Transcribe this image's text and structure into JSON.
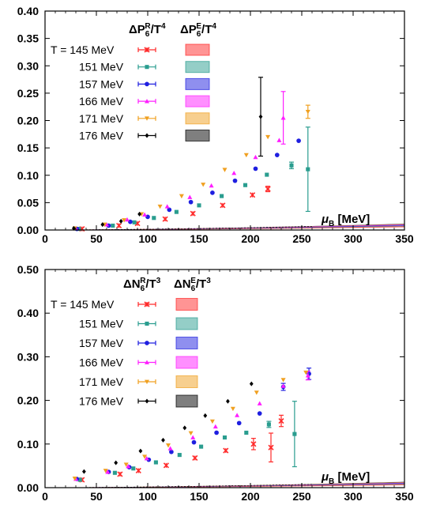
{
  "colors": {
    "T145": "#ff2a2a",
    "T151": "#2a9d8f",
    "T157": "#1f1fe0",
    "T166": "#ff1fff",
    "T171": "#f0a020",
    "T176": "#000000"
  },
  "chart_data": [
    {
      "type": "scatter",
      "title": "",
      "xlabel": "μB [MeV]",
      "xlabel_main": "μ",
      "xlabel_sub": "B",
      "xlabel_unit": " [MeV]",
      "ylabel": "",
      "xlim": [
        0,
        350
      ],
      "ylim": [
        0,
        0.4
      ],
      "xticks": [
        0,
        50,
        100,
        150,
        200,
        250,
        300,
        350
      ],
      "yticks": [
        0.0,
        0.05,
        0.1,
        0.15,
        0.2,
        0.25,
        0.3,
        0.35,
        0.4
      ],
      "ytick_labels": [
        "0.00",
        "0.05",
        "0.10",
        "0.15",
        "0.20",
        "0.25",
        "0.30",
        "0.35",
        "0.40"
      ],
      "grid": false,
      "legend_header_points": "ΔP6R/T4",
      "legend_header_bands": "ΔP6E/T4",
      "legend_header_points_parts": [
        "ΔP",
        "6",
        "R",
        "/T",
        "4"
      ],
      "legend_header_bands_parts": [
        "ΔP",
        "6",
        "E",
        "/T",
        "4"
      ],
      "legend_placement": "top-left",
      "legend_labels": [
        "T = 145 MeV",
        "151 MeV",
        "157 MeV",
        "166 MeV",
        "171 MeV",
        "176 MeV"
      ],
      "series": [
        {
          "key": "T145",
          "marker": "x",
          "band_lo": 0.000455,
          "band_hi": 0.000565,
          "points": [
            [
              36,
              0.002,
              0
            ],
            [
              72,
              0.008,
              0
            ],
            [
              90,
              0.012,
              0
            ],
            [
              117,
              0.02,
              0
            ],
            [
              144,
              0.03,
              0
            ],
            [
              173,
              0.045,
              0
            ],
            [
              202,
              0.064,
              0
            ],
            [
              217,
              0.075,
              0.005
            ]
          ]
        },
        {
          "key": "T151",
          "marker": "square",
          "band_lo": 0.00055,
          "band_hi": 0.000645,
          "points": [
            [
              33,
              0.002,
              0
            ],
            [
              66,
              0.008,
              0
            ],
            [
              87,
              0.014,
              0
            ],
            [
              106,
              0.022,
              0
            ],
            [
              128,
              0.033,
              0
            ],
            [
              150,
              0.045,
              0
            ],
            [
              172,
              0.062,
              0
            ],
            [
              195,
              0.082,
              0
            ],
            [
              216,
              0.101,
              0
            ],
            [
              240,
              0.118,
              0.006
            ],
            [
              256,
              0.111,
              0.077
            ]
          ]
        },
        {
          "key": "T157",
          "marker": "circle",
          "band_lo": 0.000645,
          "band_hi": 0.00074,
          "points": [
            [
              31,
              0.002,
              0
            ],
            [
              62,
              0.008,
              0
            ],
            [
              83,
              0.015,
              0
            ],
            [
              100,
              0.024,
              0
            ],
            [
              121,
              0.037,
              0
            ],
            [
              142,
              0.051,
              0
            ],
            [
              163,
              0.068,
              0
            ],
            [
              185,
              0.09,
              0
            ],
            [
              205,
              0.112,
              0
            ],
            [
              226,
              0.137,
              0
            ],
            [
              247,
              0.163,
              0
            ]
          ]
        },
        {
          "key": "T166",
          "marker": "triangle-up",
          "band_lo": 0.000745,
          "band_hi": 0.000835,
          "points": [
            [
              30,
              0.003,
              0
            ],
            [
              60,
              0.01,
              0
            ],
            [
              80,
              0.019,
              0
            ],
            [
              97,
              0.028,
              0
            ],
            [
              119,
              0.043,
              0
            ],
            [
              141,
              0.06,
              0
            ],
            [
              162,
              0.081,
              0
            ],
            [
              184,
              0.104,
              0
            ],
            [
              205,
              0.133,
              0
            ],
            [
              228,
              0.164,
              0
            ],
            [
              232,
              0.205,
              0.048
            ]
          ]
        },
        {
          "key": "T171",
          "marker": "triangle-down",
          "band_lo": 0.000805,
          "band_hi": 0.000885,
          "points": [
            [
              29,
              0.003,
              0
            ],
            [
              58,
              0.01,
              0
            ],
            [
              77,
              0.018,
              0
            ],
            [
              94,
              0.029,
              0
            ],
            [
              112,
              0.043,
              0
            ],
            [
              133,
              0.062,
              0
            ],
            [
              154,
              0.083,
              0
            ],
            [
              175,
              0.11,
              0
            ],
            [
              196,
              0.137,
              0
            ],
            [
              217,
              0.17,
              0
            ],
            [
              256,
              0.216,
              0.012
            ]
          ]
        },
        {
          "key": "T176",
          "marker": "diamond",
          "band_lo": 0.00086,
          "band_hi": 0.00094,
          "points": [
            [
              28,
              0.003,
              0
            ],
            [
              56,
              0.01,
              0
            ],
            [
              74,
              0.016,
              0
            ],
            [
              92,
              0.029,
              0
            ],
            [
              210,
              0.207,
              0.072
            ]
          ]
        }
      ]
    },
    {
      "type": "scatter",
      "title": "",
      "xlabel": "μB [MeV]",
      "xlabel_main": "μ",
      "xlabel_sub": "B",
      "xlabel_unit": " [MeV]",
      "ylabel": "",
      "xlim": [
        0,
        350
      ],
      "ylim": [
        0,
        0.5
      ],
      "xticks": [
        0,
        50,
        100,
        150,
        200,
        250,
        300,
        350
      ],
      "yticks": [
        0.0,
        0.1,
        0.2,
        0.3,
        0.4,
        0.5
      ],
      "ytick_labels": [
        "0.00",
        "0.10",
        "0.20",
        "0.30",
        "0.40",
        "0.50"
      ],
      "grid": false,
      "legend_header_points": "ΔN6R/T3",
      "legend_header_bands": "ΔN6E/T3",
      "legend_header_points_parts": [
        "ΔN",
        "6",
        "R",
        "/T",
        "3"
      ],
      "legend_header_bands_parts": [
        "ΔN",
        "6",
        "E",
        "/T",
        "3"
      ],
      "legend_placement": "top-left",
      "legend_labels": [
        "T = 145 MeV",
        "151 MeV",
        "157 MeV",
        "166 MeV",
        "171 MeV",
        "176 MeV"
      ],
      "series": [
        {
          "key": "T145",
          "marker": "x",
          "band_lo": 0.000515,
          "band_hi": 0.000645,
          "band_spread": 0,
          "points": [
            [
              36,
              0.018,
              0
            ],
            [
              73,
              0.031,
              0
            ],
            [
              91,
              0.039,
              0
            ],
            [
              118,
              0.051,
              0
            ],
            [
              146,
              0.068,
              0
            ],
            [
              176,
              0.085,
              0
            ],
            [
              203,
              0.1,
              0.013
            ],
            [
              220,
              0.092,
              0.033
            ],
            [
              230,
              0.153,
              0.013
            ]
          ]
        },
        {
          "key": "T151",
          "marker": "square",
          "band_lo": 0.00065,
          "band_hi": 0.00075,
          "band_spread": 0,
          "points": [
            [
              34,
              0.018,
              0
            ],
            [
              68,
              0.034,
              0
            ],
            [
              86,
              0.044,
              0
            ],
            [
              108,
              0.058,
              0
            ],
            [
              131,
              0.075,
              0
            ],
            [
              152,
              0.094,
              0
            ],
            [
              175,
              0.115,
              0
            ],
            [
              196,
              0.126,
              0
            ],
            [
              218,
              0.145,
              0.007
            ],
            [
              243,
              0.123,
              0.075
            ]
          ]
        },
        {
          "key": "T157",
          "marker": "circle",
          "band_lo": 0.000745,
          "band_hi": 0.00085,
          "band_spread": 7e-05,
          "points": [
            [
              31,
              0.02,
              0
            ],
            [
              62,
              0.036,
              0
            ],
            [
              82,
              0.047,
              0
            ],
            [
              101,
              0.064,
              0
            ],
            [
              123,
              0.082,
              0
            ],
            [
              145,
              0.104,
              0
            ],
            [
              167,
              0.126,
              0
            ],
            [
              189,
              0.148,
              0
            ],
            [
              209,
              0.17,
              0
            ],
            [
              232,
              0.231,
              0.008
            ],
            [
              257,
              0.261,
              0.013
            ]
          ]
        },
        {
          "key": "T166",
          "marker": "triangle-up",
          "band_lo": 0.00083,
          "band_hi": 0.000925,
          "band_spread": 0.0001,
          "points": [
            [
              30,
              0.02,
              0
            ],
            [
              61,
              0.036,
              0
            ],
            [
              81,
              0.049,
              0
            ],
            [
              99,
              0.067,
              0
            ],
            [
              122,
              0.09,
              0
            ],
            [
              144,
              0.115,
              0
            ],
            [
              166,
              0.14,
              0
            ],
            [
              187,
              0.166,
              0
            ],
            [
              209,
              0.193,
              0
            ],
            [
              232,
              0.233,
              0
            ],
            [
              256,
              0.257,
              0.01
            ]
          ]
        },
        {
          "key": "T171",
          "marker": "triangle-down",
          "band_lo": 0.000935,
          "band_hi": 0.001015,
          "band_spread": 0.00012,
          "points": [
            [
              29,
              0.021,
              0
            ],
            [
              59,
              0.039,
              0
            ],
            [
              79,
              0.053,
              0
            ],
            [
              97,
              0.071,
              0
            ],
            [
              120,
              0.097,
              0
            ],
            [
              142,
              0.125,
              0
            ],
            [
              163,
              0.152,
              0
            ],
            [
              183,
              0.181,
              0
            ],
            [
              206,
              0.218,
              0
            ],
            [
              232,
              0.247,
              0
            ],
            [
              254,
              0.264,
              0
            ]
          ]
        },
        {
          "key": "T176",
          "marker": "diamond",
          "band_lo": 0.00099,
          "band_hi": 0.00108,
          "band_spread": 0.00015,
          "points": [
            [
              38,
              0.037,
              0
            ],
            [
              69,
              0.057,
              0
            ],
            [
              93,
              0.084,
              0
            ],
            [
              115,
              0.109,
              0
            ],
            [
              136,
              0.137,
              0
            ],
            [
              156,
              0.165,
              0
            ],
            [
              178,
              0.198,
              0
            ],
            [
              201,
              0.238,
              0
            ]
          ]
        }
      ]
    }
  ]
}
